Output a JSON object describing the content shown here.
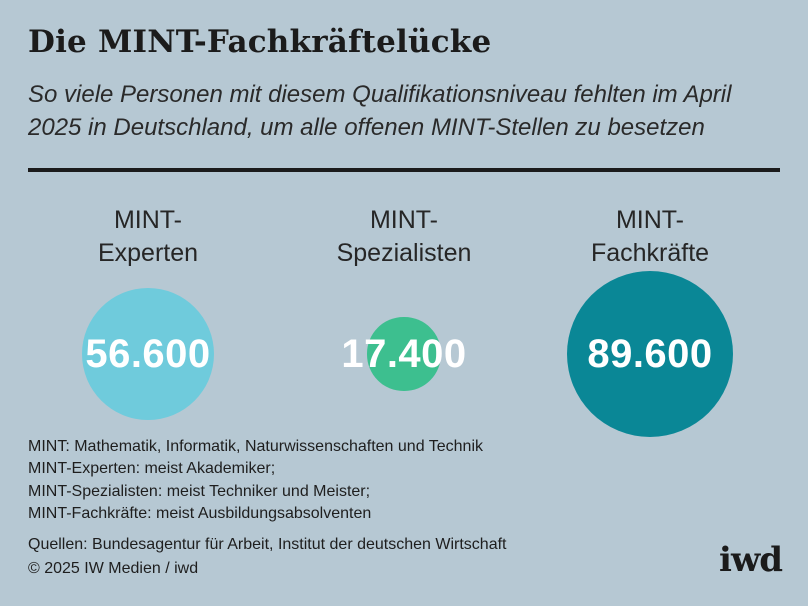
{
  "header": {
    "title": "Die MINT-Fachkräftelücke",
    "subtitle": "So viele Personen mit diesem Qualifikationsniveau fehlten im April 2025 in Deutschland, um alle offenen MINT-Stellen zu besetzen"
  },
  "chart_data": {
    "type": "bubble",
    "categories": [
      "MINT-Experten",
      "MINT-Spezialisten",
      "MINT-Fachkräfte"
    ],
    "series": [
      {
        "label_lines": [
          [
            "MINT-",
            "Experten"
          ],
          [
            "MINT-",
            "Spezialisten"
          ],
          [
            "MINT-",
            "Fachkräfte"
          ]
        ],
        "values": [
          56600,
          17400,
          89600
        ],
        "value_labels": [
          "56.600",
          "17.400",
          "89.600"
        ],
        "colors": [
          "#6fcbdc",
          "#3dbf8f",
          "#0a8796"
        ]
      }
    ]
  },
  "notes": [
    "MINT: Mathematik, Informatik, Naturwissenschaften und Technik",
    "MINT-Experten: meist Akademiker;",
    "MINT-Spezialisten: meist Techniker und Meister;",
    "MINT-Fachkräfte: meist Ausbildungsabsolventen"
  ],
  "sources": [
    "Quellen: Bundesagentur für Arbeit, Institut der deutschen Wirtschaft",
    "© 2025 IW Medien / iwd"
  ],
  "logo": "iwd"
}
